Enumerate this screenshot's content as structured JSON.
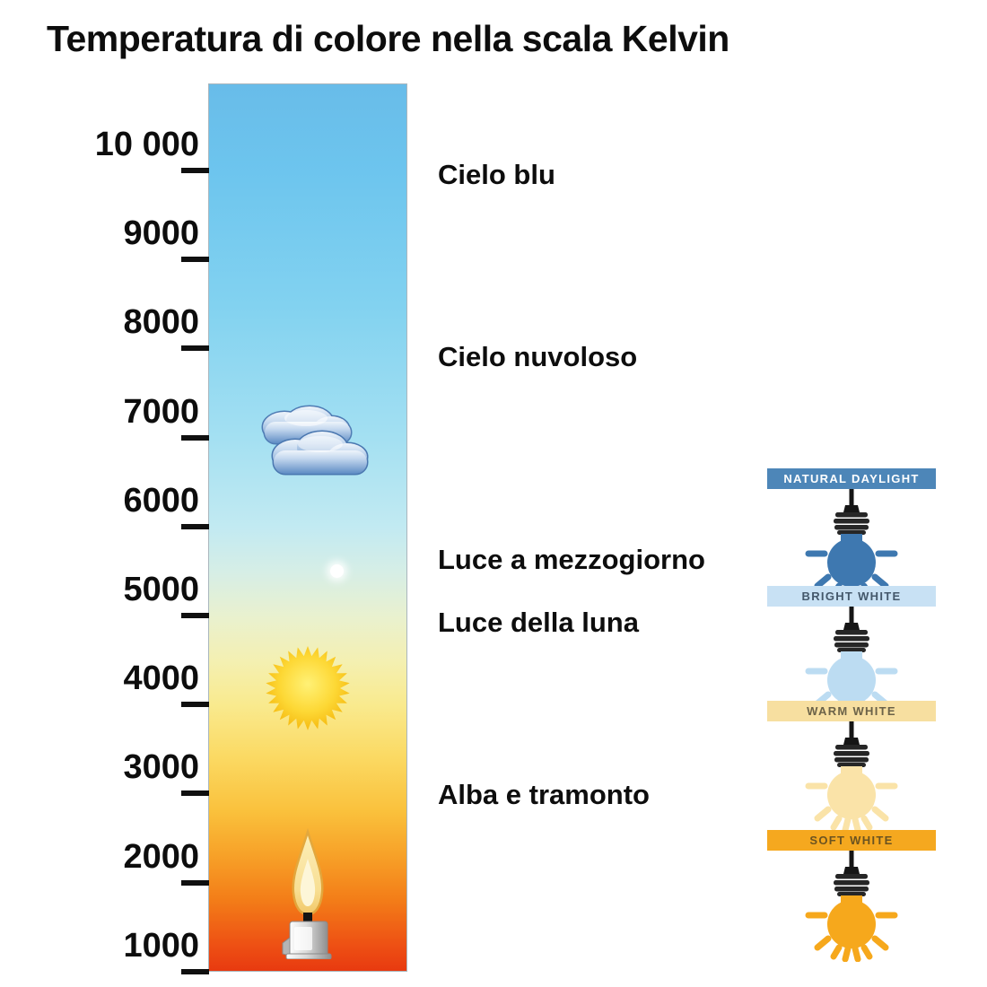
{
  "title": "Temperatura di colore nella scala Kelvin",
  "scale": {
    "unit": "Kelvin",
    "tick_values": [
      10000,
      9000,
      8000,
      7000,
      6000,
      5000,
      4000,
      3000,
      2000,
      1000
    ],
    "tick_labels": [
      "10 000",
      "9000",
      "8000",
      "7000",
      "6000",
      "5000",
      "4000",
      "3000",
      "2000",
      "1000"
    ],
    "bar_gradient": [
      {
        "pos": 0,
        "color": "#68bce9"
      },
      {
        "pos": 10,
        "color": "#6dc5ee"
      },
      {
        "pos": 25,
        "color": "#82d2f0"
      },
      {
        "pos": 40,
        "color": "#a4e0f2"
      },
      {
        "pos": 50,
        "color": "#c2eaf2"
      },
      {
        "pos": 55,
        "color": "#d6eee6"
      },
      {
        "pos": 60,
        "color": "#e9f1cf"
      },
      {
        "pos": 65,
        "color": "#f4f0b2"
      },
      {
        "pos": 70,
        "color": "#f9ea8e"
      },
      {
        "pos": 76,
        "color": "#fbd962"
      },
      {
        "pos": 82,
        "color": "#fac13c"
      },
      {
        "pos": 87,
        "color": "#f7a128"
      },
      {
        "pos": 92,
        "color": "#f37d18"
      },
      {
        "pos": 97,
        "color": "#ee5114"
      },
      {
        "pos": 100,
        "color": "#e83a10"
      }
    ]
  },
  "annotations": [
    {
      "label": "Cielo blu",
      "kelvin": 9950
    },
    {
      "label": "Cielo nuvoloso",
      "kelvin": 7900
    },
    {
      "label": "Luce a mezzogiorno",
      "kelvin": 5620
    },
    {
      "label": "Luce della luna",
      "kelvin": 4920
    },
    {
      "label": "Alba e tramonto",
      "kelvin": 2980
    }
  ],
  "icons": {
    "clouds": {
      "name": "clouds-icon",
      "kelvin": 6900
    },
    "moon": {
      "name": "moon-dot-icon",
      "kelvin": 5500
    },
    "sun": {
      "name": "sun-icon",
      "kelvin": 4200
    },
    "candle": {
      "name": "candle-icon",
      "kelvin": 1900
    }
  },
  "bulb_levels": [
    {
      "label": "NATURAL DAYLIGHT",
      "banner_bg": "#4d86b8",
      "banner_text": "#ffffff",
      "bulb_color": "#3e78b0"
    },
    {
      "label": "BRIGHT WHITE",
      "banner_bg": "#c8e1f4",
      "banner_text": "#44586b",
      "bulb_color": "#bcdcf2"
    },
    {
      "label": "WARM WHITE",
      "banner_bg": "#f7dfa0",
      "banner_text": "#6b6248",
      "bulb_color": "#fae3a8"
    },
    {
      "label": "SOFT WHITE",
      "banner_bg": "#f5a81f",
      "banner_text": "#6b5320",
      "bulb_color": "#f6a81c"
    }
  ]
}
